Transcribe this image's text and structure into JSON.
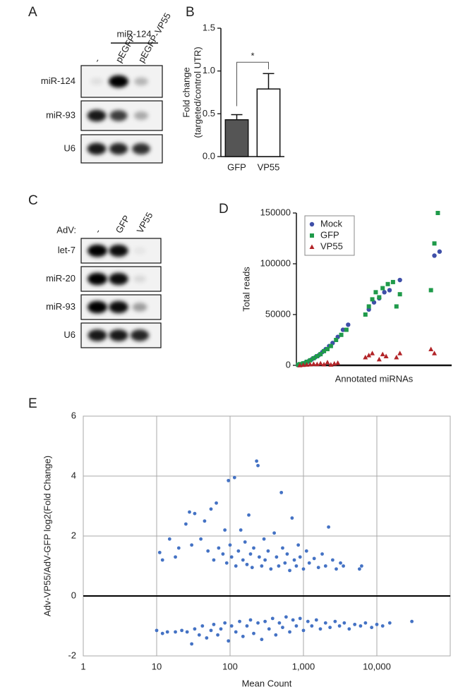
{
  "panel_labels": [
    "A",
    "B",
    "C",
    "D",
    "E"
  ],
  "blots": [
    {
      "header": "miR-124",
      "lanes": [
        "-",
        "pEGFP",
        "pEGFP-VP55"
      ],
      "rows": [
        "miR-124",
        "miR-93",
        "U6"
      ]
    },
    {
      "prefix": "AdV:",
      "lanes": [
        "-",
        "GFP",
        "VP55"
      ],
      "rows": [
        "let-7",
        "miR-20",
        "miR-93",
        "U6"
      ]
    }
  ],
  "chart_data": [
    {
      "type": "bar",
      "categories": [
        "GFP",
        "VP55"
      ],
      "values": [
        0.43,
        0.79
      ],
      "errors": [
        0.06,
        0.18
      ],
      "colors": [
        "#555555",
        "#ffffff"
      ],
      "ylabel": [
        "Fold change",
        "(targeted/control UTR)"
      ],
      "ylim": [
        0,
        1.5
      ],
      "yticks": [
        {
          "value": 0,
          "label": "0.0"
        },
        {
          "value": 0.5,
          "label": "0.5"
        },
        {
          "value": 1,
          "label": "1.0"
        },
        {
          "value": 1.5,
          "label": "1.5"
        }
      ],
      "annotation": "*"
    },
    {
      "type": "scatter",
      "xlabel": "Annotated miRNAs",
      "ylabel": "Total reads",
      "xlim": [
        0,
        90
      ],
      "ylim": [
        0,
        150000
      ],
      "yticks": [
        0,
        50000,
        100000,
        150000
      ],
      "legend": "upper-left",
      "series": [
        {
          "name": "Mock",
          "color": "#3f4fa8",
          "marker": "circle",
          "x": [
            1,
            3,
            5,
            7,
            9,
            11,
            13,
            15,
            17,
            19,
            21,
            24,
            27,
            30,
            42,
            45,
            48,
            51,
            54,
            60,
            80,
            83
          ],
          "values": [
            300,
            1000,
            2500,
            4000,
            6000,
            8000,
            10000,
            13000,
            16000,
            19000,
            22000,
            28000,
            35000,
            40000,
            55000,
            62000,
            66000,
            72000,
            74000,
            84000,
            108000,
            112000
          ]
        },
        {
          "name": "GFP",
          "color": "#1f9a4a",
          "marker": "square",
          "x": [
            1,
            2,
            4,
            6,
            8,
            10,
            12,
            14,
            16,
            18,
            20,
            23,
            26,
            29,
            40,
            42,
            44,
            46,
            48,
            50,
            53,
            56,
            58,
            60,
            78,
            80,
            82
          ],
          "values": [
            500,
            1200,
            2000,
            3500,
            5000,
            7000,
            9000,
            11000,
            14000,
            16000,
            19000,
            25000,
            30000,
            35000,
            50000,
            58000,
            65000,
            72000,
            67000,
            76000,
            80000,
            82000,
            58000,
            70000,
            74000,
            120000,
            150000
          ]
        },
        {
          "name": "VP55",
          "color": "#b22428",
          "marker": "triangle",
          "x": [
            2,
            4,
            6,
            8,
            10,
            12,
            14,
            16,
            18,
            20,
            22,
            24,
            40,
            42,
            44,
            48,
            50,
            52,
            58,
            60,
            78,
            80
          ],
          "values": [
            200,
            500,
            800,
            1000,
            1500,
            1200,
            2000,
            1000,
            3000,
            800,
            1800,
            2500,
            8000,
            10000,
            12000,
            6000,
            11000,
            9000,
            8000,
            12000,
            16000,
            12000
          ]
        }
      ]
    },
    {
      "type": "scatter",
      "log_x": true,
      "grid": true,
      "color": "#4472c4",
      "xlabel": "Mean Count",
      "ylabel": "Adv-VP55/AdV-GFP  log2(Fold Change)",
      "xlim": [
        1,
        100000
      ],
      "xticks": [
        1,
        10,
        100,
        {
          "value": 1000,
          "label": "1,000"
        },
        {
          "value": 10000,
          "label": "10,000"
        }
      ],
      "ylim": [
        -2,
        6
      ],
      "yticks": [
        -2,
        0,
        2,
        4,
        6
      ],
      "x": [
        11,
        12,
        15,
        18,
        20,
        25,
        28,
        30,
        33,
        40,
        45,
        50,
        55,
        60,
        65,
        70,
        80,
        85,
        90,
        95,
        100,
        105,
        115,
        120,
        130,
        140,
        150,
        160,
        170,
        180,
        190,
        200,
        210,
        230,
        240,
        250,
        270,
        290,
        300,
        330,
        360,
        400,
        430,
        460,
        500,
        520,
        560,
        600,
        650,
        700,
        750,
        800,
        850,
        900,
        1000,
        1100,
        1200,
        1400,
        1600,
        1800,
        2000,
        2200,
        2500,
        2800,
        3200,
        3500,
        5800,
        6200,
        10,
        12,
        14,
        18,
        22,
        26,
        30,
        33,
        38,
        42,
        48,
        55,
        60,
        68,
        75,
        85,
        95,
        105,
        120,
        135,
        150,
        170,
        190,
        210,
        240,
        270,
        300,
        340,
        380,
        420,
        470,
        520,
        580,
        650,
        720,
        800,
        900,
        1000,
        1150,
        1300,
        1500,
        1700,
        2000,
        2300,
        2700,
        3100,
        3600,
        4200,
        5000,
        6000,
        7000,
        8500,
        10000,
        12000,
        15000,
        30000
      ],
      "values": [
        1.45,
        1.2,
        1.9,
        1.3,
        1.6,
        2.4,
        2.8,
        1.7,
        2.75,
        1.9,
        2.5,
        1.5,
        2.9,
        1.2,
        3.1,
        1.6,
        1.4,
        2.2,
        1.1,
        3.85,
        1.7,
        1.3,
        3.95,
        1.0,
        1.5,
        2.2,
        1.2,
        1.8,
        1.05,
        2.7,
        1.4,
        0.95,
        1.6,
        4.5,
        4.35,
        1.3,
        1.0,
        1.9,
        1.2,
        1.5,
        0.9,
        2.1,
        1.3,
        1.0,
        3.45,
        1.6,
        1.1,
        1.4,
        0.85,
        2.6,
        1.2,
        1.0,
        1.7,
        1.3,
        0.9,
        1.5,
        1.1,
        1.25,
        0.95,
        1.4,
        1.0,
        2.3,
        1.2,
        0.9,
        1.1,
        1.0,
        0.9,
        1.0,
        -1.15,
        -1.25,
        -1.2,
        -1.2,
        -1.15,
        -1.2,
        -1.6,
        -1.1,
        -1.3,
        -1.0,
        -1.4,
        -1.15,
        -0.95,
        -1.3,
        -1.1,
        -0.9,
        -1.5,
        -1.0,
        -1.2,
        -0.85,
        -1.35,
        -1.0,
        -0.8,
        -1.25,
        -0.9,
        -1.45,
        -0.85,
        -1.1,
        -0.75,
        -1.3,
        -0.9,
        -1.05,
        -0.7,
        -1.2,
        -0.8,
        -1.0,
        -0.75,
        -1.15,
        -0.85,
        -1.0,
        -0.8,
        -1.1,
        -0.9,
        -1.05,
        -0.85,
        -1.0,
        -0.9,
        -1.1,
        -0.95,
        -1.0,
        -0.9,
        -1.05,
        -0.95,
        -1.0,
        -0.9,
        -0.85
      ]
    }
  ]
}
